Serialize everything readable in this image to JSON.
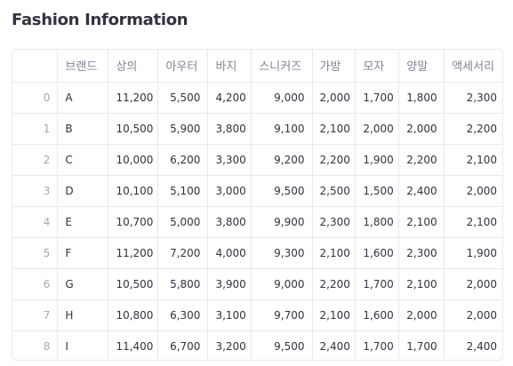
{
  "page": {
    "title": "Fashion Information"
  },
  "table": {
    "columns": [
      "",
      "브랜드",
      "상의",
      "아우터",
      "바지",
      "스니커즈",
      "가방",
      "모자",
      "양말",
      "액세서리"
    ],
    "rows": [
      {
        "index": "0",
        "brand": "A",
        "values": [
          "11,200",
          "5,500",
          "4,200",
          "9,000",
          "2,000",
          "1,700",
          "1,800",
          "2,300"
        ]
      },
      {
        "index": "1",
        "brand": "B",
        "values": [
          "10,500",
          "5,900",
          "3,800",
          "9,100",
          "2,100",
          "2,000",
          "2,000",
          "2,200"
        ]
      },
      {
        "index": "2",
        "brand": "C",
        "values": [
          "10,000",
          "6,200",
          "3,300",
          "9,200",
          "2,200",
          "1,900",
          "2,200",
          "2,100"
        ]
      },
      {
        "index": "3",
        "brand": "D",
        "values": [
          "10,100",
          "5,100",
          "3,000",
          "9,500",
          "2,500",
          "1,500",
          "2,400",
          "2,000"
        ]
      },
      {
        "index": "4",
        "brand": "E",
        "values": [
          "10,700",
          "5,000",
          "3,800",
          "9,900",
          "2,300",
          "1,800",
          "2,100",
          "2,100"
        ]
      },
      {
        "index": "5",
        "brand": "F",
        "values": [
          "11,200",
          "7,200",
          "4,000",
          "9,300",
          "2,100",
          "1,600",
          "2,300",
          "1,900"
        ]
      },
      {
        "index": "6",
        "brand": "G",
        "values": [
          "10,500",
          "5,800",
          "3,900",
          "9,000",
          "2,200",
          "1,700",
          "2,100",
          "2,000"
        ]
      },
      {
        "index": "7",
        "brand": "H",
        "values": [
          "10,800",
          "6,300",
          "3,100",
          "9,700",
          "2,100",
          "1,600",
          "2,000",
          "2,000"
        ]
      },
      {
        "index": "8",
        "brand": "I",
        "values": [
          "11,400",
          "6,700",
          "3,200",
          "9,500",
          "2,400",
          "1,700",
          "1,700",
          "2,400"
        ]
      }
    ]
  },
  "colors": {
    "text": "#31333f",
    "header_text": "#808495",
    "index_text": "#a3a8b8",
    "border": "#e6e9ef"
  }
}
